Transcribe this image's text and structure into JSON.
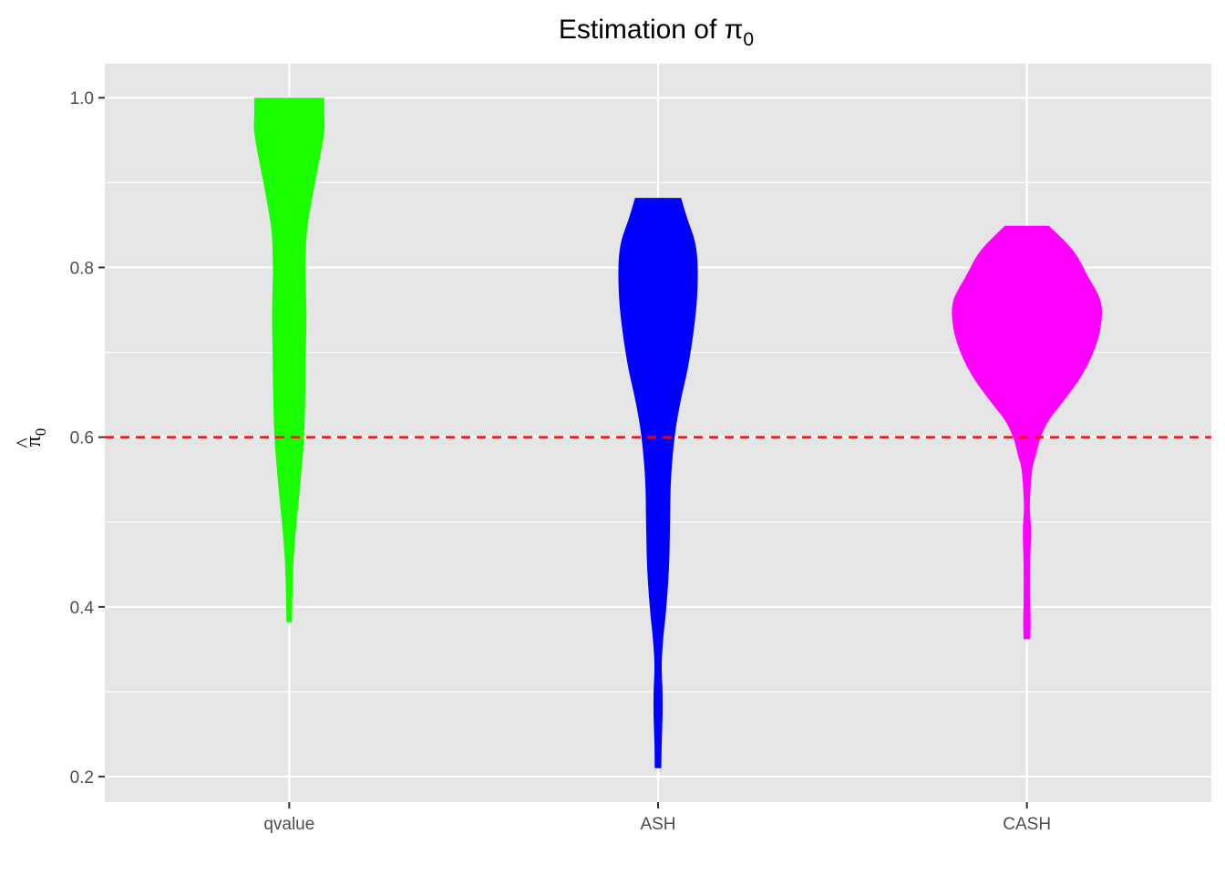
{
  "chart_data": {
    "type": "violin",
    "title": {
      "text": "Estimation of π",
      "subscript": "0"
    },
    "xlabel": "",
    "ylabel": {
      "text": "π",
      "accent": "^",
      "subscript": "0"
    },
    "categories": [
      "qvalue",
      "ASH",
      "CASH"
    ],
    "ylim": [
      0.17,
      1.04
    ],
    "yticks": [
      0.2,
      0.4,
      0.6,
      0.8,
      1.0
    ],
    "ytick_labels": [
      "0.2",
      "0.4",
      "0.6",
      "0.8",
      "1.0"
    ],
    "grid": true,
    "legend": "none",
    "reference_line": {
      "y": 0.6,
      "style": "dashed",
      "color": "#ff0000"
    },
    "series": [
      {
        "category": "qvalue",
        "color": "#1aff00",
        "min": 0.382,
        "max": 1.0,
        "profile": [
          [
            0.382,
            0.015
          ],
          [
            0.42,
            0.018
          ],
          [
            0.46,
            0.025
          ],
          [
            0.5,
            0.04
          ],
          [
            0.55,
            0.062
          ],
          [
            0.6,
            0.08
          ],
          [
            0.65,
            0.087
          ],
          [
            0.7,
            0.09
          ],
          [
            0.74,
            0.093
          ],
          [
            0.78,
            0.09
          ],
          [
            0.8,
            0.088
          ],
          [
            0.84,
            0.095
          ],
          [
            0.87,
            0.115
          ],
          [
            0.9,
            0.14
          ],
          [
            0.93,
            0.167
          ],
          [
            0.96,
            0.19
          ],
          [
            0.98,
            0.19
          ],
          [
            1.0,
            0.19
          ]
        ]
      },
      {
        "category": "ASH",
        "color": "#0000ff",
        "min": 0.21,
        "max": 0.882,
        "profile": [
          [
            0.21,
            0.018
          ],
          [
            0.24,
            0.02
          ],
          [
            0.27,
            0.024
          ],
          [
            0.3,
            0.024
          ],
          [
            0.33,
            0.02
          ],
          [
            0.36,
            0.027
          ],
          [
            0.4,
            0.045
          ],
          [
            0.45,
            0.06
          ],
          [
            0.5,
            0.065
          ],
          [
            0.55,
            0.07
          ],
          [
            0.6,
            0.09
          ],
          [
            0.64,
            0.12
          ],
          [
            0.68,
            0.16
          ],
          [
            0.72,
            0.19
          ],
          [
            0.76,
            0.21
          ],
          [
            0.8,
            0.215
          ],
          [
            0.83,
            0.2
          ],
          [
            0.86,
            0.155
          ],
          [
            0.882,
            0.125
          ]
        ]
      },
      {
        "category": "CASH",
        "color": "#ff00ff",
        "min": 0.362,
        "max": 0.849,
        "profile": [
          [
            0.362,
            0.018
          ],
          [
            0.38,
            0.02
          ],
          [
            0.41,
            0.018
          ],
          [
            0.45,
            0.018
          ],
          [
            0.49,
            0.022
          ],
          [
            0.52,
            0.016
          ],
          [
            0.56,
            0.028
          ],
          [
            0.58,
            0.05
          ],
          [
            0.6,
            0.075
          ],
          [
            0.62,
            0.12
          ],
          [
            0.64,
            0.19
          ],
          [
            0.67,
            0.29
          ],
          [
            0.7,
            0.36
          ],
          [
            0.73,
            0.4
          ],
          [
            0.76,
            0.4
          ],
          [
            0.79,
            0.33
          ],
          [
            0.82,
            0.25
          ],
          [
            0.849,
            0.12
          ]
        ]
      }
    ]
  }
}
